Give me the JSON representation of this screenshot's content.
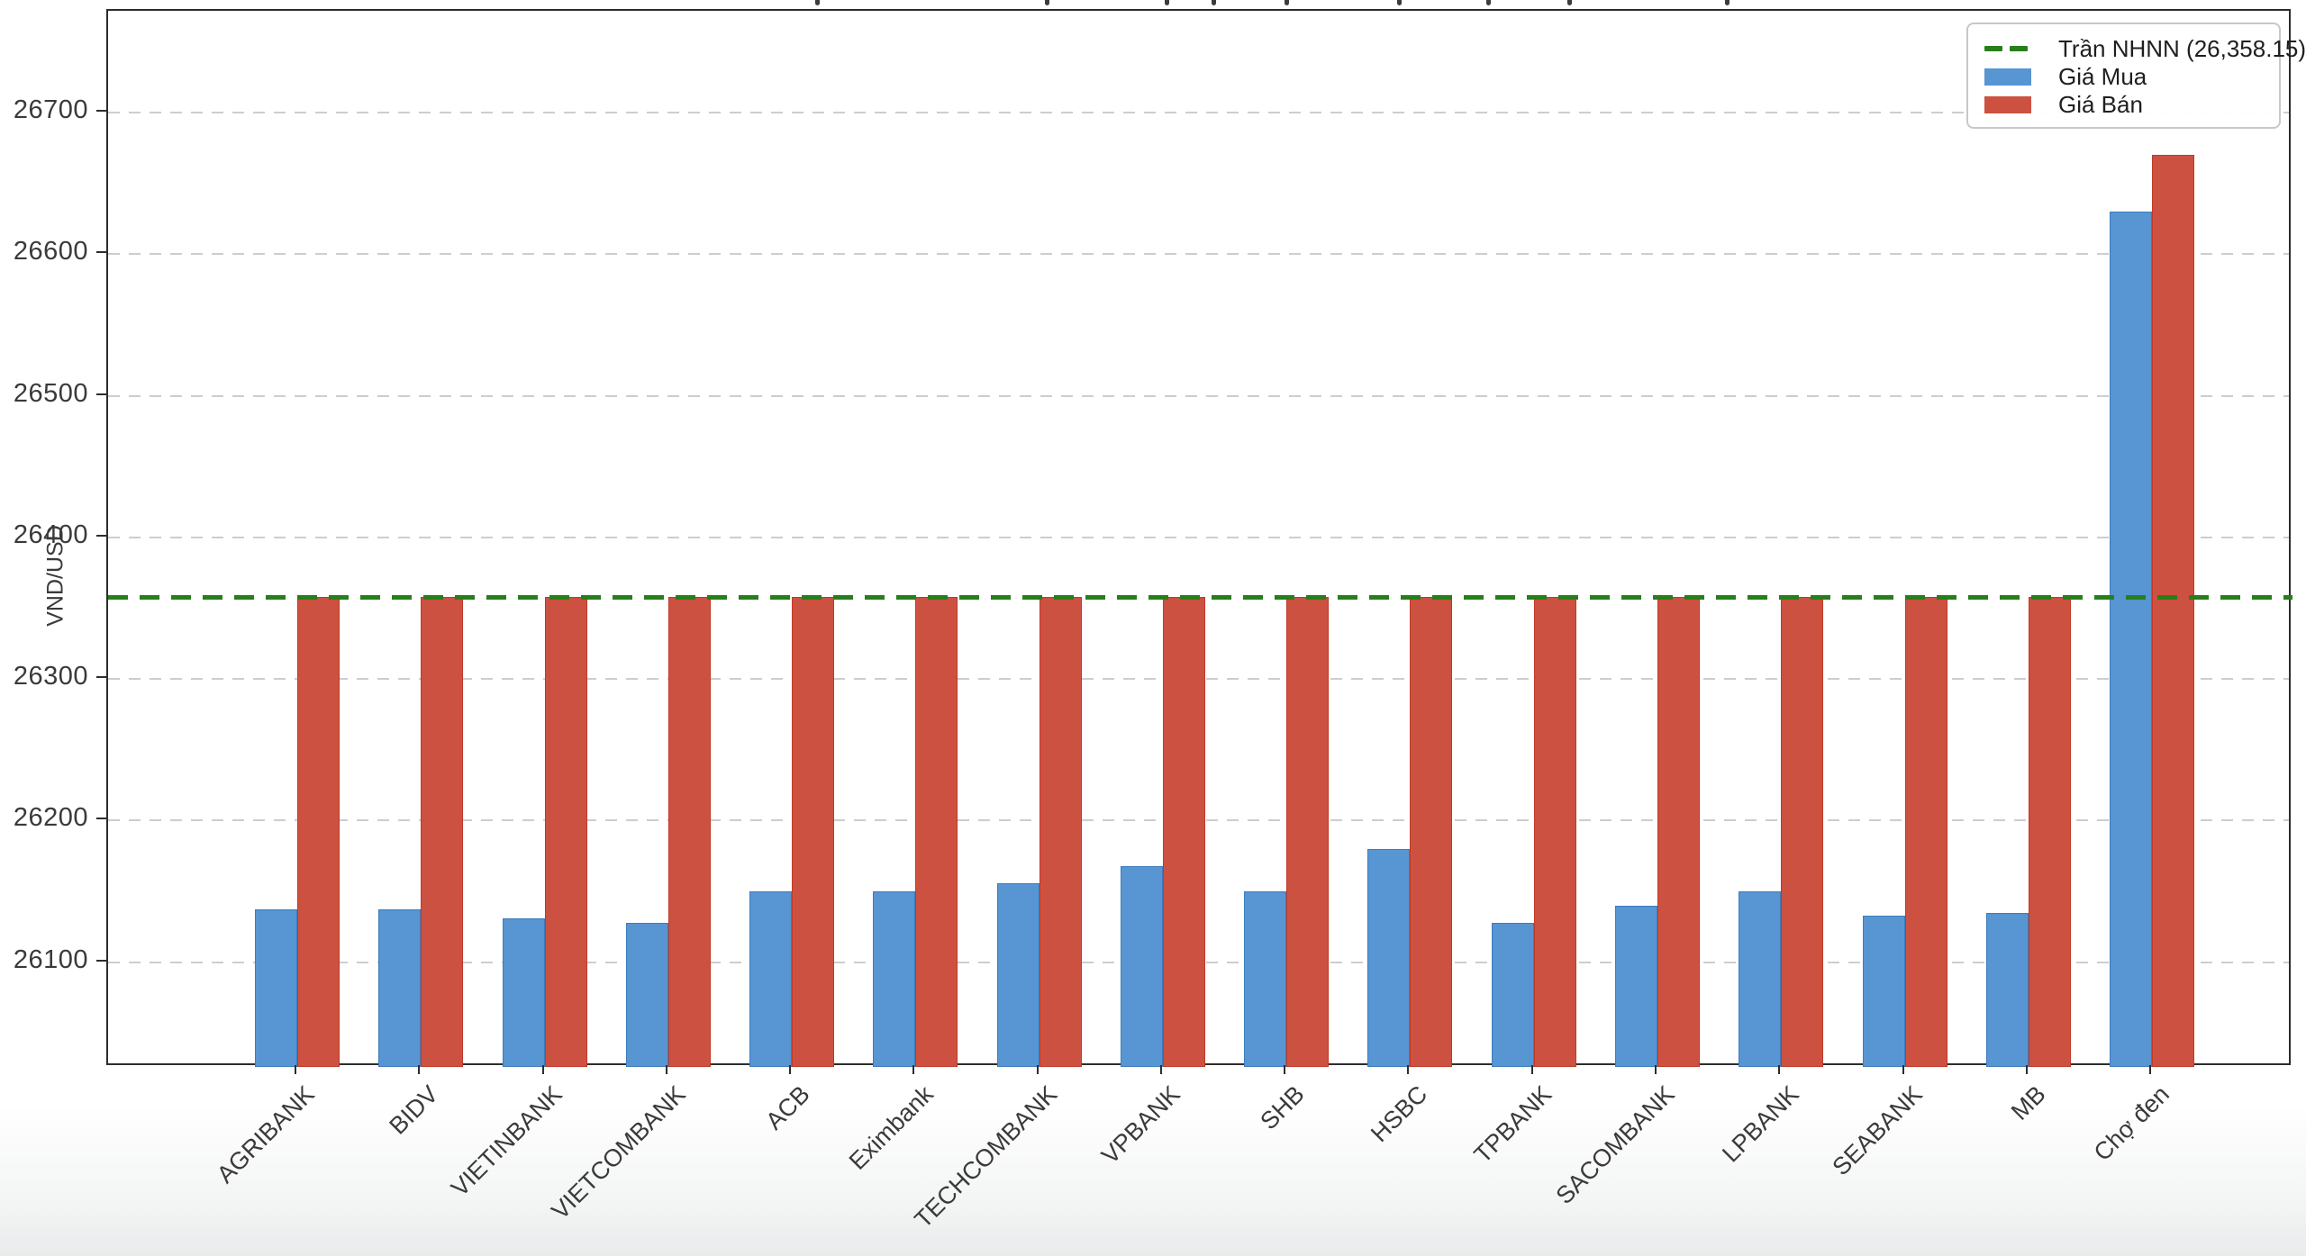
{
  "chart_data": {
    "type": "bar",
    "ylabel": "VND/USD",
    "categories": [
      "AGRIBANK",
      "BIDV",
      "VIETINBANK",
      "VIETCOMBANK",
      "ACB",
      "Eximbank",
      "TECHCOMBANK",
      "VPBANK",
      "SHB",
      "HSBC",
      "TPBANK",
      "SACOMBANK",
      "LPBANK",
      "SEABANK",
      "MB",
      "Chợ đen"
    ],
    "series": [
      {
        "name": "Giá Mua",
        "color": "#5795d3",
        "values": [
          26137,
          26137,
          26131,
          26128,
          26150,
          26150,
          26156,
          26168,
          26150,
          26180,
          26128,
          26140,
          26150,
          26133,
          26135,
          26630
        ]
      },
      {
        "name": "Giá Bán",
        "color": "#cd5140",
        "values": [
          26358,
          26358,
          26358,
          26358,
          26358,
          26358,
          26358,
          26358,
          26358,
          26358,
          26358,
          26358,
          26358,
          26358,
          26358,
          26670
        ]
      }
    ],
    "reference_line": {
      "label": "Trần NHNN (26,358.15)",
      "value": 26358.15,
      "color": "#267f1a",
      "style": "dashed"
    },
    "y_ticks": [
      26100,
      26200,
      26300,
      26400,
      26500,
      26600,
      26700
    ],
    "ylim": [
      26026,
      26772
    ],
    "grid": "horizontal-dashed",
    "legend_position": "top-right"
  }
}
